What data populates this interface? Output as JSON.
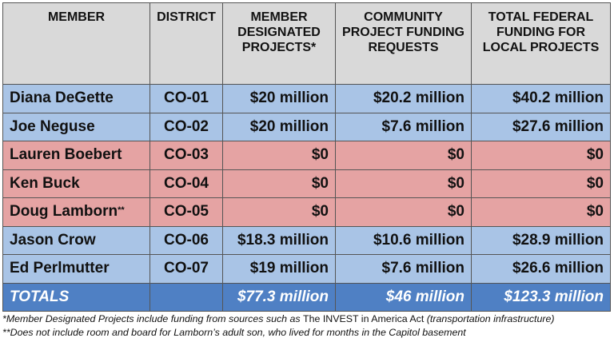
{
  "table": {
    "header": [
      "MEMBER",
      "DISTRICT",
      "MEMBER DESIGNATED PROJECTS*",
      "COMMUNITY PROJECT FUNDING REQUESTS",
      "TOTAL FEDERAL FUNDING FOR LOCAL PROJECTS"
    ],
    "header_fill": "#d9d9d9",
    "rows": [
      {
        "cells": [
          "Diana DeGette",
          "CO-01",
          "$20 million",
          "$20.2 million",
          "$40.2 million"
        ],
        "fill": "#a9c4e6"
      },
      {
        "cells": [
          "Joe Neguse",
          "CO-02",
          "$20 million",
          "$7.6 million",
          "$27.6 million"
        ],
        "fill": "#a9c4e6"
      },
      {
        "cells": [
          "Lauren Boebert",
          "CO-03",
          "$0",
          "$0",
          "$0"
        ],
        "fill": "#e5a3a3"
      },
      {
        "cells": [
          "Ken Buck",
          "CO-04",
          "$0",
          "$0",
          "$0"
        ],
        "fill": "#e5a3a3"
      },
      {
        "cells": [
          "Doug Lamborn",
          "CO-05",
          "$0",
          "$0",
          "$0"
        ],
        "note": "**",
        "fill": "#e5a3a3"
      },
      {
        "cells": [
          "Jason Crow",
          "CO-06",
          "$18.3 million",
          "$10.6 million",
          "$28.9 million"
        ],
        "fill": "#a9c4e6"
      },
      {
        "cells": [
          "Ed Perlmutter",
          "CO-07",
          "$19 million",
          "$7.6 million",
          "$26.6 million"
        ],
        "fill": "#a9c4e6"
      }
    ],
    "totals": {
      "cells": [
        "TOTALS",
        "",
        "$77.3 million",
        "$46 million",
        "$123.3 million"
      ],
      "fill": "#4f80c4"
    }
  },
  "footnotes": [
    [
      "*Member Designated Projects include funding from sources such as ",
      "The INVEST in America Act",
      " (transportation infrastructure)"
    ],
    [
      "**Does not include room and board for Lamborn’s adult son, who lived for months in the Capitol basement"
    ]
  ]
}
